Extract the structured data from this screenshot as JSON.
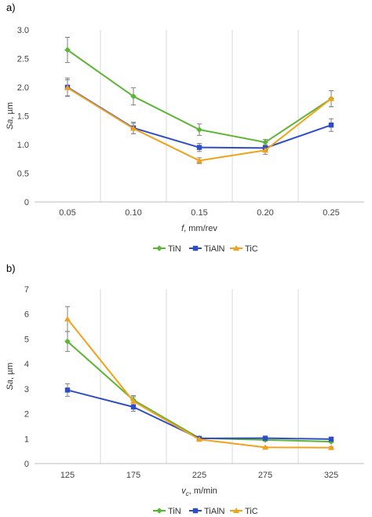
{
  "colors": {
    "TiN": "#5db534",
    "TiAlN": "#2f4dc4",
    "TiC": "#f0a21d",
    "grid": "#d9d9d9",
    "errorbar": "#7f7f7f"
  },
  "chart_data": [
    {
      "panel_label": "a)",
      "type": "line",
      "x": [
        "0.05",
        "0.10",
        "0.15",
        "0.20",
        "0.25"
      ],
      "xlabel_var": "f",
      "xlabel_unit": ", mm/rev",
      "ylabel_var": "Sa",
      "ylabel_unit": ", µm",
      "ylim": [
        0,
        3.0
      ],
      "yticks": [
        "0",
        "0.5",
        "1.0",
        "1.5",
        "2.0",
        "2.5",
        "3.0"
      ],
      "grid": "vertical",
      "legend_position": "bottom",
      "series": [
        {
          "name": "TiN",
          "marker": "diamond",
          "values": [
            2.65,
            1.84,
            1.26,
            1.04,
            1.8
          ],
          "err": [
            0.22,
            0.15,
            0.1,
            0.05,
            0.14
          ]
        },
        {
          "name": "TiAlN",
          "marker": "square",
          "values": [
            2.0,
            1.29,
            0.95,
            0.94,
            1.34
          ],
          "err": [
            0.16,
            0.1,
            0.07,
            0.05,
            0.11
          ]
        },
        {
          "name": "TiC",
          "marker": "triangle",
          "values": [
            1.99,
            1.28,
            0.72,
            0.9,
            1.8
          ],
          "err": [
            0.14,
            0.09,
            0.05,
            0.07,
            0.14
          ]
        }
      ]
    },
    {
      "panel_label": "b)",
      "type": "line",
      "x": [
        "125",
        "175",
        "225",
        "275",
        "325"
      ],
      "xlabel_var": "v",
      "xlabel_sub": "c",
      "xlabel_unit": ", m/min",
      "ylabel_var": "Sa",
      "ylabel_unit": ", µm",
      "ylim": [
        0,
        7
      ],
      "yticks": [
        "0",
        "1",
        "2",
        "3",
        "4",
        "5",
        "6",
        "7"
      ],
      "grid": "vertical",
      "legend_position": "bottom",
      "series": [
        {
          "name": "TiN",
          "marker": "diamond",
          "values": [
            4.9,
            2.55,
            1.02,
            0.95,
            0.88
          ],
          "err": [
            0.4,
            0.18,
            0.06,
            0.05,
            0.04
          ]
        },
        {
          "name": "TiAlN",
          "marker": "square",
          "values": [
            2.95,
            2.27,
            1.01,
            1.02,
            0.98
          ],
          "err": [
            0.25,
            0.17,
            0.05,
            0.05,
            0.04
          ]
        },
        {
          "name": "TiC",
          "marker": "triangle",
          "values": [
            5.8,
            2.5,
            0.97,
            0.65,
            0.64
          ],
          "err": [
            0.5,
            0.18,
            0.05,
            0.03,
            0.03
          ]
        }
      ]
    }
  ]
}
